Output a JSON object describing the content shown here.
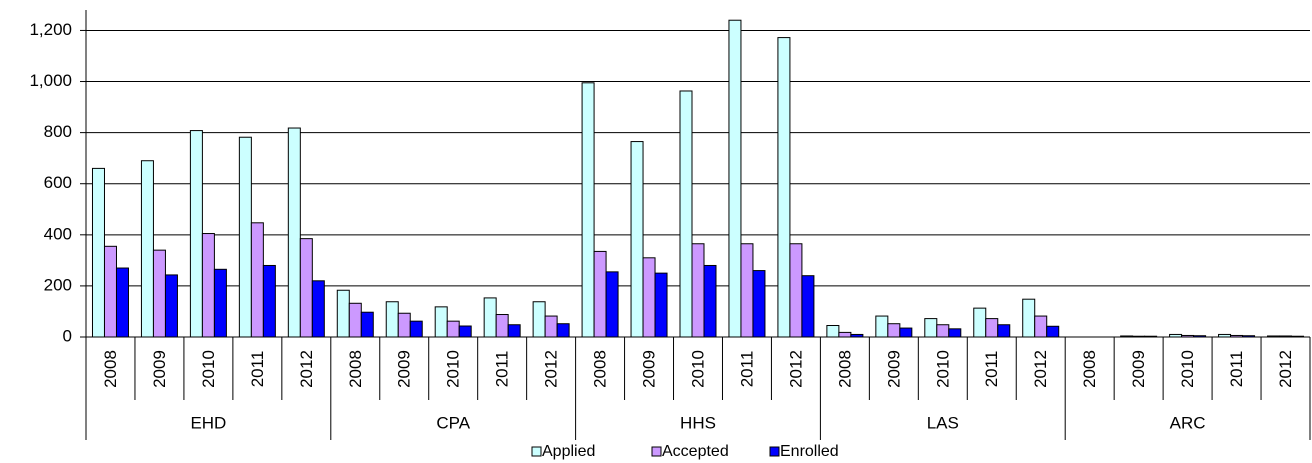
{
  "chart_data": {
    "type": "bar",
    "categories": [
      "2008",
      "2009",
      "2010",
      "2011",
      "2012",
      "2008",
      "2009",
      "2010",
      "2011",
      "2012",
      "2008",
      "2009",
      "2010",
      "2011",
      "2012",
      "2008",
      "2009",
      "2010",
      "2011",
      "2012",
      "2008",
      "2009",
      "2010",
      "2011",
      "2012"
    ],
    "groups": [
      "EHD",
      "CPA",
      "HHS",
      "LAS",
      "ARC"
    ],
    "series": [
      {
        "name": "Applied",
        "color": "#ccffff",
        "values": [
          660,
          690,
          808,
          782,
          818,
          183,
          138,
          118,
          153,
          138,
          995,
          765,
          963,
          1240,
          1172,
          45,
          82,
          72,
          113,
          148,
          0,
          4,
          10,
          10,
          4
        ]
      },
      {
        "name": "Accepted",
        "color": "#cc99ff",
        "values": [
          355,
          340,
          405,
          447,
          385,
          132,
          93,
          62,
          88,
          82,
          335,
          310,
          365,
          365,
          365,
          18,
          52,
          48,
          72,
          82,
          0,
          3,
          6,
          6,
          4
        ]
      },
      {
        "name": "Enrolled",
        "color": "#0000ff",
        "values": [
          270,
          243,
          265,
          280,
          220,
          97,
          62,
          43,
          48,
          52,
          255,
          250,
          280,
          260,
          240,
          10,
          35,
          32,
          48,
          42,
          0,
          3,
          5,
          5,
          3
        ]
      }
    ],
    "ylim": [
      0,
      1280
    ],
    "yticks": [
      0,
      200,
      400,
      600,
      800,
      {
        "value": 1000,
        "label": "1,000"
      },
      {
        "value": 1200,
        "label": "1,200"
      }
    ],
    "grid": true,
    "legend": "bottom"
  }
}
